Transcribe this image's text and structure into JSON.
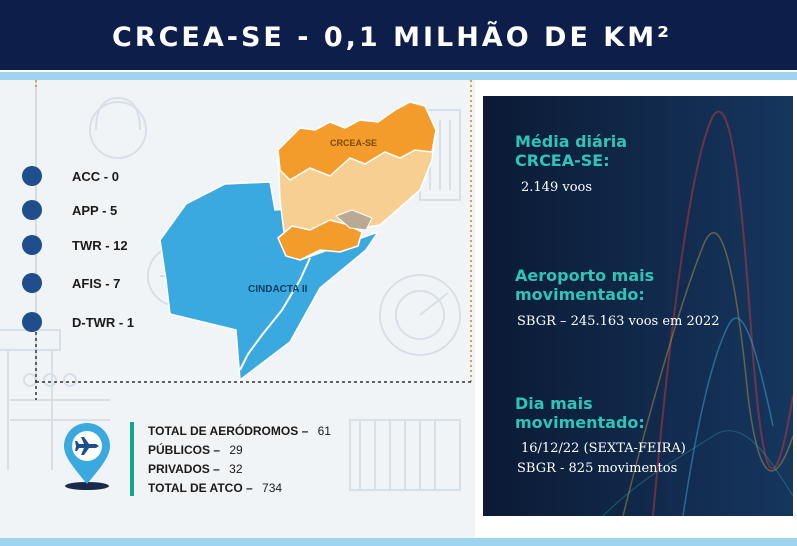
{
  "header": {
    "title": "CRCEA-SE - 0,1 MILHÃO DE KM²"
  },
  "map": {
    "region_labels": [
      "CRCEA-SE",
      "CINDACTA II"
    ]
  },
  "units": [
    {
      "label": "ACC - 0"
    },
    {
      "label": "APP - 5"
    },
    {
      "label": "TWR - 12"
    },
    {
      "label": "AFIS - 7"
    },
    {
      "label": "D-TWR - 1"
    }
  ],
  "aerodromes": {
    "total_label": "TOTAL DE AERÓDROMOS –",
    "total_value": "61",
    "public_label": "PÚBLICOS –",
    "public_value": "29",
    "private_label": "PRIVADOS –",
    "private_value": "32",
    "atco_label": "TOTAL DE ATCO –",
    "atco_value": "734"
  },
  "stats": {
    "daily_avg_heading_1": "Média diária",
    "daily_avg_heading_2": "CRCEA-SE:",
    "daily_avg_value": "2.149 voos",
    "busiest_airport_heading_1": "Aeroporto mais",
    "busiest_airport_heading_2": "movimentado:",
    "busiest_airport_value": "SBGR – 245.163 voos em 2022",
    "busiest_day_heading_1": "Dia mais",
    "busiest_day_heading_2": "movimentado:",
    "busiest_day_value_1": "16/12/22 (SEXTA-FEIRA)",
    "busiest_day_value_2": "SBGR - 825 movimentos"
  },
  "colors": {
    "header_bg": "#0d1e4a",
    "accent": "#9fd4ef",
    "teal_heading": "#2ec4b6",
    "map_blue": "#3aa9df",
    "map_orange": "#f39c2c",
    "map_light_orange": "#f7cf93",
    "dot_blue": "#1f4e8c",
    "green_bar": "#17a589"
  },
  "icons": {
    "pin": "airplane-location-pin-icon"
  }
}
